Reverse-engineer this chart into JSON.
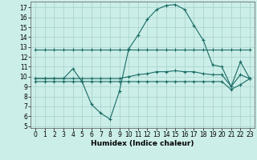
{
  "xlabel": "Humidex (Indice chaleur)",
  "background_color": "#cceee8",
  "grid_color": "#aad4ce",
  "line_color": "#1a6b65",
  "xlim": [
    -0.5,
    23.5
  ],
  "ylim": [
    4.8,
    17.6
  ],
  "yticks": [
    5,
    6,
    7,
    8,
    9,
    10,
    11,
    12,
    13,
    14,
    15,
    16,
    17
  ],
  "xticks": [
    0,
    1,
    2,
    3,
    4,
    5,
    6,
    7,
    8,
    9,
    10,
    11,
    12,
    13,
    14,
    15,
    16,
    17,
    18,
    19,
    20,
    21,
    22,
    23
  ],
  "series": [
    {
      "x": [
        0,
        1,
        2,
        3,
        4,
        5,
        6,
        7,
        8,
        9,
        10,
        11,
        12,
        13,
        14,
        15,
        16,
        17,
        18,
        19,
        20,
        21,
        22,
        23
      ],
      "y": [
        12.7,
        12.7,
        12.7,
        12.7,
        12.7,
        12.7,
        12.7,
        12.7,
        12.7,
        12.7,
        12.7,
        12.7,
        12.7,
        12.7,
        12.7,
        12.7,
        12.7,
        12.7,
        12.7,
        12.7,
        12.7,
        12.7,
        12.7,
        12.7
      ]
    },
    {
      "x": [
        0,
        1,
        2,
        3,
        4,
        5,
        6,
        7,
        8,
        9,
        10,
        11,
        12,
        13,
        14,
        15,
        16,
        17,
        18,
        19,
        20,
        21,
        22,
        23
      ],
      "y": [
        9.8,
        9.8,
        9.8,
        9.8,
        10.8,
        9.5,
        7.2,
        6.3,
        5.7,
        8.5,
        12.8,
        14.2,
        15.8,
        16.8,
        17.2,
        17.3,
        16.8,
        15.2,
        13.7,
        11.2,
        11.0,
        9.0,
        11.5,
        9.8
      ]
    },
    {
      "x": [
        0,
        1,
        2,
        3,
        4,
        5,
        6,
        7,
        8,
        9,
        10,
        11,
        12,
        13,
        14,
        15,
        16,
        17,
        18,
        19,
        20,
        21,
        22,
        23
      ],
      "y": [
        9.8,
        9.8,
        9.8,
        9.8,
        9.8,
        9.8,
        9.8,
        9.8,
        9.8,
        9.8,
        10.0,
        10.2,
        10.3,
        10.5,
        10.5,
        10.6,
        10.5,
        10.5,
        10.3,
        10.2,
        10.2,
        9.0,
        10.2,
        9.8
      ]
    },
    {
      "x": [
        0,
        1,
        2,
        3,
        4,
        5,
        6,
        7,
        8,
        9,
        10,
        11,
        12,
        13,
        14,
        15,
        16,
        17,
        18,
        19,
        20,
        21,
        22,
        23
      ],
      "y": [
        9.5,
        9.5,
        9.5,
        9.5,
        9.5,
        9.5,
        9.5,
        9.5,
        9.5,
        9.5,
        9.5,
        9.5,
        9.5,
        9.5,
        9.5,
        9.5,
        9.5,
        9.5,
        9.5,
        9.5,
        9.5,
        8.7,
        9.2,
        9.8
      ]
    }
  ]
}
